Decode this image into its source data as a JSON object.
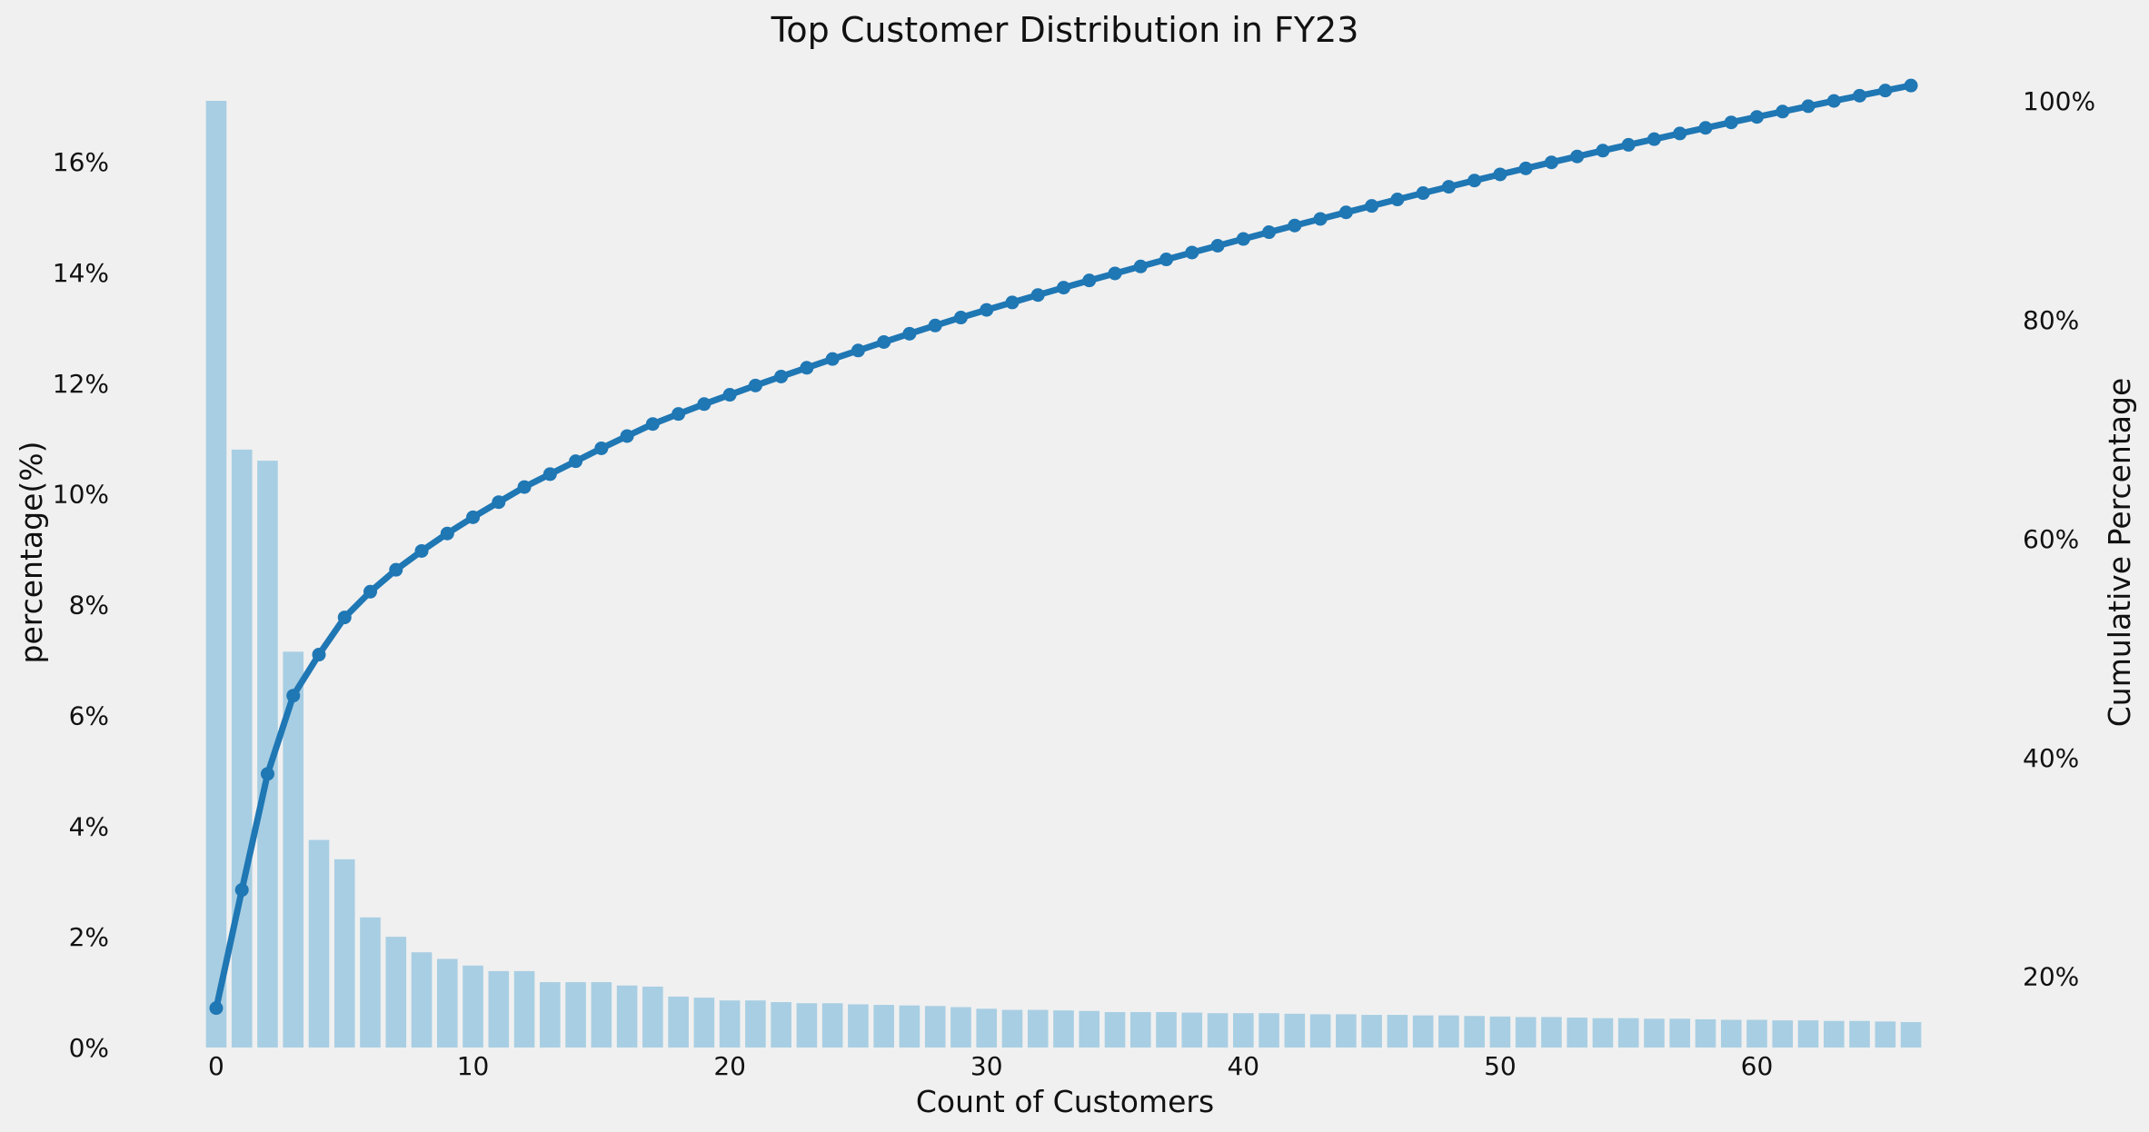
{
  "chart_data": {
    "type": "bar+line",
    "title": "Top Customer Distribution in FY23",
    "xlabel": "Count of Customers",
    "ylabel": "percentage(%)",
    "y2label": "Cumulative Percentage",
    "xticks": [
      0,
      10,
      20,
      30,
      40,
      50,
      60
    ],
    "xtick_labels": [
      "0",
      "10",
      "20",
      "30",
      "40",
      "50",
      "60"
    ],
    "xlim": [
      -0.6,
      66.6
    ],
    "ylim": [
      0,
      17.1
    ],
    "yticks": [
      0,
      2,
      4,
      6,
      8,
      10,
      12,
      14,
      16
    ],
    "ytick_labels": [
      "0%",
      "2%",
      "4%",
      "6%",
      "8%",
      "10%",
      "12%",
      "14%",
      "16%"
    ],
    "y2lim": [
      13.5,
      100
    ],
    "y2ticks": [
      20,
      40,
      60,
      80,
      100
    ],
    "y2tick_labels": [
      "20%",
      "40%",
      "60%",
      "80%",
      "100%"
    ],
    "grid": false,
    "bar_color": "#a8cee3",
    "line_color": "#1f77b4",
    "background": "#f0f0f0",
    "series": [
      {
        "type": "bar",
        "axis": "left",
        "x": [
          0,
          1,
          2,
          3,
          4,
          5,
          6,
          7,
          8,
          9,
          10,
          11,
          12,
          13,
          14,
          15,
          16,
          17,
          18,
          19,
          20,
          21,
          22,
          23,
          24,
          25,
          26,
          27,
          28,
          29,
          30,
          31,
          32,
          33,
          34,
          35,
          36,
          37,
          38,
          39,
          40,
          41,
          42,
          43,
          44,
          45,
          46,
          47,
          48,
          49,
          50,
          51,
          52,
          53,
          54,
          55,
          56,
          57,
          58,
          59,
          60,
          61,
          62,
          63,
          64,
          65,
          66
        ],
        "values": [
          17.1,
          10.8,
          10.6,
          7.15,
          3.75,
          3.4,
          2.35,
          2.0,
          1.72,
          1.6,
          1.48,
          1.38,
          1.38,
          1.18,
          1.18,
          1.18,
          1.12,
          1.1,
          0.92,
          0.9,
          0.85,
          0.85,
          0.82,
          0.8,
          0.8,
          0.78,
          0.77,
          0.76,
          0.75,
          0.73,
          0.7,
          0.68,
          0.68,
          0.67,
          0.66,
          0.64,
          0.64,
          0.64,
          0.63,
          0.62,
          0.62,
          0.62,
          0.61,
          0.6,
          0.6,
          0.59,
          0.59,
          0.58,
          0.58,
          0.57,
          0.56,
          0.55,
          0.55,
          0.54,
          0.53,
          0.53,
          0.52,
          0.52,
          0.51,
          0.5,
          0.5,
          0.49,
          0.49,
          0.48,
          0.48,
          0.47,
          0.46
        ]
      },
      {
        "type": "line",
        "axis": "right",
        "x": [
          0,
          1,
          2,
          3,
          4,
          5,
          6,
          7,
          8,
          9,
          10,
          11,
          12,
          13,
          14,
          15,
          16,
          17,
          18,
          19,
          20,
          21,
          22,
          23,
          24,
          25,
          26,
          27,
          28,
          29,
          30,
          31,
          32,
          33,
          34,
          35,
          36,
          37,
          38,
          39,
          40,
          41,
          42,
          43,
          44,
          45,
          46,
          47,
          48,
          49,
          50,
          51,
          52,
          53,
          54,
          55,
          56,
          57,
          58,
          59,
          60,
          61,
          62,
          63,
          64,
          65,
          66
        ],
        "values": [
          17.1,
          27.9,
          38.5,
          45.65,
          49.4,
          52.8,
          55.15,
          57.15,
          58.87,
          60.47,
          61.95,
          63.33,
          64.71,
          65.89,
          67.07,
          68.25,
          69.37,
          70.47,
          71.39,
          72.29,
          73.14,
          73.99,
          74.81,
          75.61,
          76.41,
          77.19,
          77.96,
          78.72,
          79.47,
          80.2,
          80.9,
          81.58,
          82.26,
          82.93,
          83.59,
          84.23,
          84.87,
          85.51,
          86.14,
          86.76,
          87.38,
          88.0,
          88.61,
          89.21,
          89.81,
          90.4,
          90.99,
          91.57,
          92.15,
          92.72,
          93.28,
          93.83,
          94.38,
          94.92,
          95.45,
          95.98,
          96.5,
          97.02,
          97.53,
          98.03,
          98.53,
          99.02,
          99.51,
          99.99,
          100.47,
          100.94,
          101.4
        ]
      }
    ]
  }
}
